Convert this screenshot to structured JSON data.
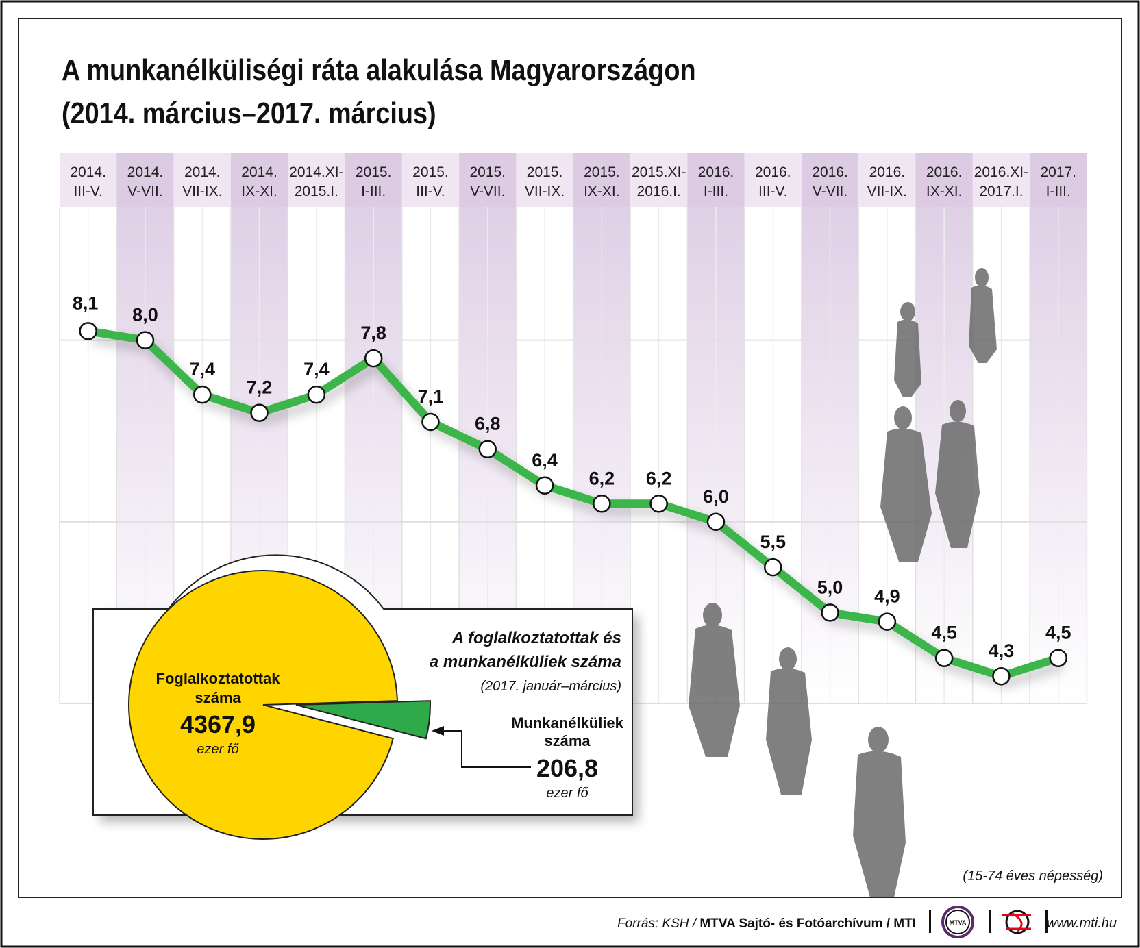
{
  "title_line1": "A munkanélküliségi ráta alakulása Magyarországon",
  "title_line2": "(2014. március–2017. március)",
  "colors": {
    "line": "#3cb54a",
    "pie_employed": "#ffd500",
    "pie_unemployed": "#2eaa4a",
    "band_light": "#efe6f2",
    "band_dark": "#dccbe3",
    "logo_purple": "#5b2b6e",
    "logo_red": "#e30613"
  },
  "chart_data": {
    "type": "line",
    "title": "A munkanélküliségi ráta alakulása Magyarországon (2014. március–2017. március)",
    "categories": [
      [
        "2014.",
        "III-V."
      ],
      [
        "2014.",
        "V-VII."
      ],
      [
        "2014.",
        "VII-IX."
      ],
      [
        "2014.",
        "IX-XI."
      ],
      [
        "2014.XI-",
        "2015.I."
      ],
      [
        "2015.",
        "I-III."
      ],
      [
        "2015.",
        "III-V."
      ],
      [
        "2015.",
        "V-VII."
      ],
      [
        "2015.",
        "VII-IX."
      ],
      [
        "2015.",
        "IX-XI."
      ],
      [
        "2015.XI-",
        "2016.I."
      ],
      [
        "2016.",
        "I-III."
      ],
      [
        "2016.",
        "III-V."
      ],
      [
        "2016.",
        "V-VII."
      ],
      [
        "2016.",
        "VII-IX."
      ],
      [
        "2016.",
        "IX-XI."
      ],
      [
        "2016.XI-",
        "2017.I."
      ],
      [
        "2017.",
        "I-III."
      ]
    ],
    "values": [
      8.1,
      8.0,
      7.4,
      7.2,
      7.4,
      7.8,
      7.1,
      6.8,
      6.4,
      6.2,
      6.2,
      6.0,
      5.5,
      5.0,
      4.9,
      4.5,
      4.3,
      4.5
    ],
    "value_labels": [
      "8,1",
      "8,0",
      "7,4",
      "7,2",
      "7,4",
      "7,8",
      "7,1",
      "6,8",
      "6,4",
      "6,2",
      "6,2",
      "6,0",
      "5,5",
      "5,0",
      "4,9",
      "4,5",
      "4,3",
      "4,5"
    ],
    "ylim": [
      4,
      9
    ],
    "grid": true,
    "pie": {
      "title_line1": "A foglalkoztatottak és",
      "title_line2": "a munkanélküliek száma",
      "period": "(2017. január–március)",
      "slices": [
        {
          "label_line1": "Foglalkoztatottak",
          "label_line2": "száma",
          "value": 4367.9,
          "value_label": "4367,9",
          "unit": "ezer fő"
        },
        {
          "label_line1": "Munkanélküliek",
          "label_line2": "száma",
          "value": 206.8,
          "value_label": "206,8",
          "unit": "ezer fő"
        }
      ]
    },
    "note": "(15-74 éves népesség)"
  },
  "footer": {
    "source_prefix": "Forrás: KSH / ",
    "source_bold": "MTVA Sajtó- és Fotóarchívum / MTI",
    "logo_mtva": "MTVA",
    "url": "www.mti.hu"
  }
}
